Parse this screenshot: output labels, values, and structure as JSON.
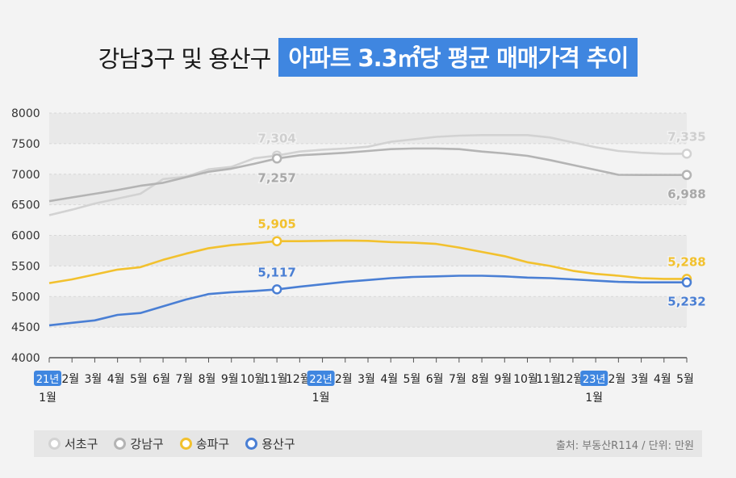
{
  "title": {
    "main": "강남3구 및 용산구",
    "highlight": "아파트 3.3㎡당 평균 매매가격 추이"
  },
  "source": "출처: 부동산R114 / 단위: 만원",
  "colors": {
    "background": "#f3f3f3",
    "band": "#e9e9e9",
    "grid": "#d8d8d8",
    "axis": "#555555",
    "highlight": "#3f86e0"
  },
  "chart_data": {
    "type": "line",
    "ylim": [
      4000,
      8000
    ],
    "yticks": [
      4000,
      4500,
      5000,
      5500,
      6000,
      6500,
      7000,
      7500,
      8000
    ],
    "ytick_labels": [
      "4000",
      "4500",
      "5000",
      "5500",
      "6000",
      "6500",
      "7000",
      "7500",
      "8000"
    ],
    "grid": true,
    "legend_position": "bottom",
    "x_ticks": [
      {
        "label": "1월",
        "year": "21년"
      },
      {
        "label": "2월"
      },
      {
        "label": "3월"
      },
      {
        "label": "4월"
      },
      {
        "label": "5월"
      },
      {
        "label": "6월"
      },
      {
        "label": "7월"
      },
      {
        "label": "8월"
      },
      {
        "label": "9월"
      },
      {
        "label": "10월"
      },
      {
        "label": "11월"
      },
      {
        "label": "12월"
      },
      {
        "label": "1월",
        "year": "22년"
      },
      {
        "label": "2월"
      },
      {
        "label": "3월"
      },
      {
        "label": "4월"
      },
      {
        "label": "5월"
      },
      {
        "label": "6월"
      },
      {
        "label": "7월"
      },
      {
        "label": "8월"
      },
      {
        "label": "9월"
      },
      {
        "label": "10월"
      },
      {
        "label": "11월"
      },
      {
        "label": "12월"
      },
      {
        "label": "1월",
        "year": "23년"
      },
      {
        "label": "2월"
      },
      {
        "label": "3월"
      },
      {
        "label": "4월"
      },
      {
        "label": "5월"
      }
    ],
    "series": [
      {
        "name": "서초구",
        "color": "#d2d2d2",
        "label_color": "#cfcfcf",
        "values": [
          6330,
          6420,
          6520,
          6600,
          6680,
          6920,
          6960,
          7080,
          7120,
          7260,
          7304,
          7370,
          7400,
          7420,
          7450,
          7530,
          7570,
          7610,
          7630,
          7640,
          7640,
          7640,
          7600,
          7520,
          7440,
          7380,
          7350,
          7335,
          7335
        ],
        "labels": [
          {
            "index": 10,
            "text": "7,304",
            "pos": "above"
          },
          {
            "index": 28,
            "text": "7,335",
            "pos": "above"
          }
        ],
        "markers": [
          10,
          28
        ]
      },
      {
        "name": "강남구",
        "color": "#b4b4b4",
        "label_color": "#a8a8a8",
        "values": [
          6560,
          6620,
          6680,
          6740,
          6810,
          6860,
          6950,
          7040,
          7090,
          7170,
          7257,
          7310,
          7330,
          7350,
          7380,
          7410,
          7420,
          7420,
          7410,
          7370,
          7340,
          7300,
          7230,
          7150,
          7070,
          6990,
          6988,
          6988,
          6988
        ],
        "labels": [
          {
            "index": 10,
            "text": "7,257",
            "pos": "below"
          },
          {
            "index": 28,
            "text": "6,988",
            "pos": "below"
          }
        ],
        "markers": [
          10,
          28
        ]
      },
      {
        "name": "송파구",
        "color": "#f2c12e",
        "label_color": "#f2c12e",
        "values": [
          5220,
          5280,
          5360,
          5440,
          5480,
          5600,
          5700,
          5790,
          5840,
          5870,
          5905,
          5905,
          5910,
          5915,
          5910,
          5890,
          5880,
          5860,
          5800,
          5730,
          5660,
          5560,
          5500,
          5420,
          5370,
          5340,
          5300,
          5288,
          5288
        ],
        "labels": [
          {
            "index": 10,
            "text": "5,905",
            "pos": "above"
          },
          {
            "index": 28,
            "text": "5,288",
            "pos": "above"
          }
        ],
        "markers": [
          10,
          28
        ]
      },
      {
        "name": "용산구",
        "color": "#4a7fd4",
        "label_color": "#4a7fd4",
        "values": [
          4530,
          4570,
          4610,
          4700,
          4730,
          4840,
          4950,
          5040,
          5070,
          5090,
          5117,
          5160,
          5200,
          5240,
          5270,
          5300,
          5320,
          5330,
          5340,
          5340,
          5330,
          5310,
          5300,
          5280,
          5260,
          5240,
          5232,
          5232,
          5232
        ],
        "labels": [
          {
            "index": 10,
            "text": "5,117",
            "pos": "above"
          },
          {
            "index": 28,
            "text": "5,232",
            "pos": "below"
          }
        ],
        "markers": [
          10,
          28
        ]
      }
    ]
  }
}
